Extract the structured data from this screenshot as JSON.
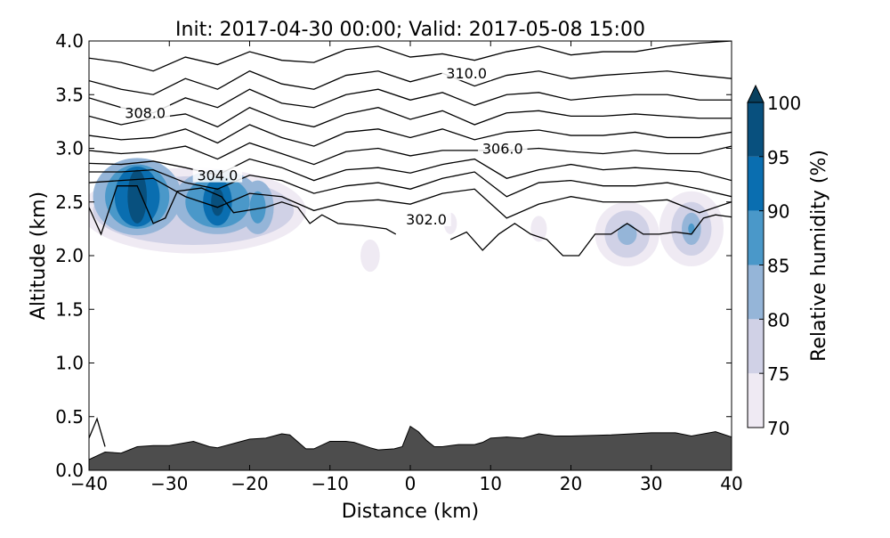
{
  "chart_data": {
    "type": "contour",
    "title": "Init: 2017-04-30 00:00; Valid: 2017-05-08 15:00",
    "xlabel": "Distance (km)",
    "ylabel": "Altitude (km)",
    "xlim": [
      -40,
      40
    ],
    "ylim": [
      0.0,
      4.0
    ],
    "x_ticks": [
      "−40",
      "−30",
      "−20",
      "−10",
      "0",
      "10",
      "20",
      "30",
      "40"
    ],
    "x_tick_values": [
      -40,
      -30,
      -20,
      -10,
      0,
      10,
      20,
      30,
      40
    ],
    "y_ticks": [
      "0.0",
      "0.5",
      "1.0",
      "1.5",
      "2.0",
      "2.5",
      "3.0",
      "3.5",
      "4.0"
    ],
    "y_tick_values": [
      0,
      0.5,
      1,
      1.5,
      2,
      2.5,
      3,
      3.5,
      4
    ],
    "colorbar": {
      "label": "Relative humidity (%)",
      "levels": [
        70,
        75,
        80,
        85,
        90,
        95,
        100
      ],
      "tick_labels": [
        "70",
        "75",
        "80",
        "85",
        "90",
        "95",
        "100"
      ],
      "colors": [
        "#efeaf3",
        "#d0d1e6",
        "#95b5d8",
        "#4a98c9",
        "#0a6eb0",
        "#08507e"
      ],
      "extend_color": "#08405f"
    },
    "terrain": {
      "color": "#4d4d4d",
      "points": [
        [
          -40,
          0.1
        ],
        [
          -38,
          0.17
        ],
        [
          -36,
          0.16
        ],
        [
          -34,
          0.22
        ],
        [
          -32,
          0.23
        ],
        [
          -30,
          0.23
        ],
        [
          -27,
          0.27
        ],
        [
          -25,
          0.22
        ],
        [
          -24,
          0.21
        ],
        [
          -22,
          0.25
        ],
        [
          -20,
          0.29
        ],
        [
          -18,
          0.3
        ],
        [
          -16,
          0.34
        ],
        [
          -15,
          0.33
        ],
        [
          -13,
          0.2
        ],
        [
          -12,
          0.2
        ],
        [
          -10,
          0.27
        ],
        [
          -8,
          0.27
        ],
        [
          -7,
          0.26
        ],
        [
          -5,
          0.21
        ],
        [
          -4,
          0.19
        ],
        [
          -2,
          0.2
        ],
        [
          -1,
          0.22
        ],
        [
          0,
          0.41
        ],
        [
          1,
          0.36
        ],
        [
          2,
          0.28
        ],
        [
          3,
          0.22
        ],
        [
          4,
          0.22
        ],
        [
          6,
          0.24
        ],
        [
          8,
          0.24
        ],
        [
          9,
          0.26
        ],
        [
          10,
          0.3
        ],
        [
          12,
          0.31
        ],
        [
          14,
          0.3
        ],
        [
          16,
          0.34
        ],
        [
          18,
          0.32
        ],
        [
          20,
          0.32
        ],
        [
          25,
          0.33
        ],
        [
          30,
          0.35
        ],
        [
          33,
          0.35
        ],
        [
          35,
          0.32
        ],
        [
          38,
          0.36
        ],
        [
          40,
          0.31
        ]
      ]
    },
    "rh_blobs": [
      {
        "x": -27,
        "alt": 2.42,
        "levels": [
          [
            70,
            14,
            0.4
          ],
          [
            75,
            12.5,
            0.32
          ]
        ]
      },
      {
        "x": -34,
        "alt": 2.55,
        "levels": [
          [
            80,
            5.5,
            0.36
          ],
          [
            85,
            4,
            0.3
          ],
          [
            90,
            2.8,
            0.28
          ],
          [
            95,
            1.2,
            0.25
          ]
        ]
      },
      {
        "x": -24,
        "alt": 2.5,
        "levels": [
          [
            80,
            5.5,
            0.3
          ],
          [
            85,
            4,
            0.24
          ],
          [
            90,
            1.8,
            0.22
          ],
          [
            95,
            0.8,
            0.13
          ]
        ]
      },
      {
        "x": -19,
        "alt": 2.45,
        "levels": [
          [
            80,
            2,
            0.25
          ],
          [
            85,
            1,
            0.15
          ]
        ]
      },
      {
        "x": 27,
        "alt": 2.2,
        "levels": [
          [
            70,
            4,
            0.3
          ],
          [
            75,
            2.8,
            0.22
          ],
          [
            80,
            1.2,
            0.1
          ]
        ]
      },
      {
        "x": 35,
        "alt": 2.25,
        "levels": [
          [
            70,
            4,
            0.35
          ],
          [
            75,
            2.5,
            0.25
          ],
          [
            80,
            1.2,
            0.15
          ],
          [
            85,
            0.4,
            0.05
          ]
        ]
      },
      {
        "x": -5,
        "alt": 2.0,
        "levels": [
          [
            70,
            1.2,
            0.15
          ]
        ]
      },
      {
        "x": 5,
        "alt": 2.3,
        "levels": [
          [
            70,
            0.8,
            0.1
          ]
        ]
      },
      {
        "x": 16,
        "alt": 2.25,
        "levels": [
          [
            70,
            1,
            0.12
          ]
        ]
      }
    ],
    "theta_contours": {
      "x": [
        -40,
        -36,
        -32,
        -28,
        -24,
        -20,
        -16,
        -12,
        -8,
        -4,
        0,
        4,
        8,
        12,
        16,
        20,
        24,
        28,
        32,
        36,
        40
      ],
      "lines": [
        {
          "level": 311,
          "alt": [
            3.84,
            3.8,
            3.72,
            3.85,
            3.78,
            3.9,
            3.82,
            3.8,
            3.92,
            3.95,
            3.85,
            3.88,
            3.82,
            3.9,
            3.95,
            3.87,
            3.9,
            3.9,
            3.95,
            3.98,
            4.0
          ]
        },
        {
          "level": 310,
          "alt": [
            3.63,
            3.55,
            3.5,
            3.65,
            3.55,
            3.72,
            3.6,
            3.55,
            3.68,
            3.72,
            3.62,
            3.7,
            3.58,
            3.68,
            3.72,
            3.65,
            3.68,
            3.7,
            3.72,
            3.68,
            3.65
          ]
        },
        {
          "level": 309,
          "alt": [
            3.47,
            3.38,
            3.33,
            3.47,
            3.38,
            3.55,
            3.42,
            3.38,
            3.5,
            3.55,
            3.45,
            3.52,
            3.4,
            3.5,
            3.52,
            3.45,
            3.48,
            3.5,
            3.5,
            3.45,
            3.45
          ]
        },
        {
          "level": 308,
          "alt": [
            3.3,
            3.22,
            3.28,
            3.32,
            3.2,
            3.38,
            3.26,
            3.2,
            3.32,
            3.38,
            3.27,
            3.35,
            3.22,
            3.33,
            3.35,
            3.3,
            3.3,
            3.32,
            3.3,
            3.28,
            3.28
          ]
        },
        {
          "level": 307,
          "alt": [
            3.12,
            3.08,
            3.1,
            3.18,
            3.05,
            3.22,
            3.1,
            3.02,
            3.15,
            3.18,
            3.1,
            3.18,
            3.08,
            3.15,
            3.17,
            3.12,
            3.12,
            3.15,
            3.1,
            3.1,
            3.15
          ]
        },
        {
          "level": 306,
          "alt": [
            2.98,
            2.95,
            2.97,
            3.02,
            2.9,
            3.05,
            2.95,
            2.85,
            2.97,
            3.0,
            2.93,
            2.98,
            2.98,
            2.98,
            3.0,
            2.97,
            2.95,
            2.98,
            2.95,
            2.95,
            3.02
          ]
        },
        {
          "level": 305,
          "alt": [
            2.86,
            2.85,
            2.88,
            2.82,
            2.75,
            2.9,
            2.82,
            2.7,
            2.8,
            2.82,
            2.77,
            2.85,
            2.9,
            2.72,
            2.8,
            2.85,
            2.8,
            2.82,
            2.8,
            2.78,
            2.7
          ]
        },
        {
          "level": 304,
          "alt": [
            2.78,
            2.78,
            2.8,
            2.68,
            2.62,
            2.75,
            2.7,
            2.58,
            2.65,
            2.68,
            2.62,
            2.72,
            2.78,
            2.55,
            2.68,
            2.7,
            2.65,
            2.65,
            2.68,
            2.62,
            2.55
          ]
        },
        {
          "level": 303,
          "alt": [
            2.68,
            2.7,
            2.72,
            2.55,
            2.45,
            2.58,
            2.55,
            2.42,
            2.5,
            2.52,
            2.48,
            2.58,
            2.62,
            2.35,
            2.48,
            2.55,
            2.5,
            2.5,
            2.52,
            2.4,
            2.5
          ]
        }
      ],
      "segments": [
        {
          "level": 302,
          "points": [
            [
              -40,
              2.45
            ],
            [
              -38.5,
              2.2
            ],
            [
              -36.5,
              2.65
            ],
            [
              -34,
              2.65
            ],
            [
              -32,
              2.3
            ],
            [
              -30.5,
              2.35
            ],
            [
              -29,
              2.6
            ],
            [
              -26,
              2.63
            ],
            [
              -23.5,
              2.55
            ],
            [
              -22,
              2.4
            ],
            [
              -18,
              2.45
            ],
            [
              -16,
              2.5
            ],
            [
              -14,
              2.45
            ],
            [
              -12.5,
              2.3
            ],
            [
              -11,
              2.38
            ],
            [
              -9,
              2.3
            ],
            [
              -6,
              2.28
            ],
            [
              -3,
              2.25
            ],
            [
              -1.8,
              2.2
            ]
          ]
        },
        {
          "level": 302,
          "points": [
            [
              5,
              2.15
            ],
            [
              7,
              2.22
            ],
            [
              9,
              2.05
            ],
            [
              11,
              2.2
            ],
            [
              13,
              2.3
            ],
            [
              15,
              2.2
            ],
            [
              17,
              2.15
            ],
            [
              19,
              2.0
            ],
            [
              21,
              2.0
            ],
            [
              23,
              2.2
            ],
            [
              25,
              2.2
            ],
            [
              27,
              2.3
            ],
            [
              29,
              2.2
            ],
            [
              31,
              2.2
            ],
            [
              33,
              2.22
            ],
            [
              35,
              2.2
            ],
            [
              36.5,
              2.35
            ],
            [
              38,
              2.38
            ],
            [
              40,
              2.36
            ]
          ]
        },
        {
          "level": 302,
          "points": [
            [
              -40,
              0.3
            ],
            [
              -39,
              0.48
            ],
            [
              -38,
              0.22
            ]
          ]
        }
      ],
      "labels": [
        {
          "text": "310.0",
          "x": 7,
          "alt": 3.7
        },
        {
          "text": "308.0",
          "x": -33,
          "alt": 3.33
        },
        {
          "text": "306.0",
          "x": 11.5,
          "alt": 3.0
        },
        {
          "text": "304.0",
          "x": -24,
          "alt": 2.75
        },
        {
          "text": "302.0",
          "x": 2,
          "alt": 2.34
        }
      ]
    }
  }
}
